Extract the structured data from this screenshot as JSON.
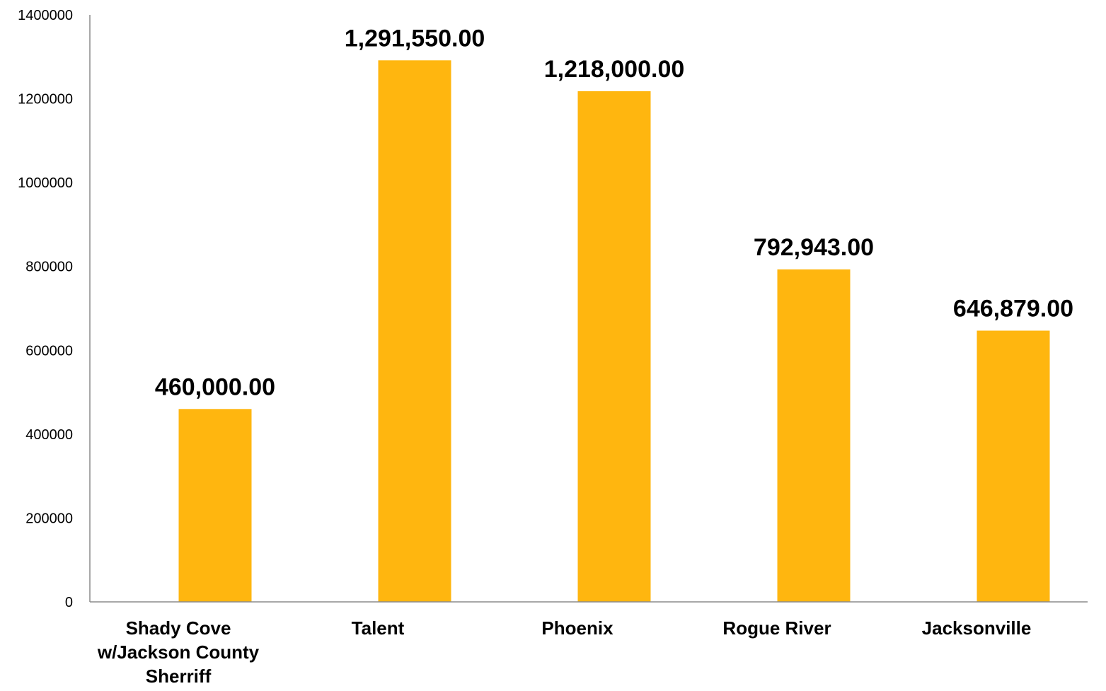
{
  "chart_data": {
    "type": "bar",
    "categories": [
      [
        "Shady Cove",
        "w/Jackson County",
        "Sherriff"
      ],
      [
        "Talent"
      ],
      [
        "Phoenix"
      ],
      [
        "Rogue River"
      ],
      [
        "Jacksonville"
      ]
    ],
    "values": [
      460000,
      1291550,
      1218000,
      792943,
      646879
    ],
    "data_labels": [
      "460,000.00",
      "1,291,550.00",
      "1,218,000.00",
      "792,943.00",
      "646,879.00"
    ],
    "y_ticks": [
      0,
      200000,
      400000,
      600000,
      800000,
      1000000,
      1200000,
      1400000
    ],
    "ylim": [
      0,
      1400000
    ],
    "grid": false,
    "legend": "none",
    "bar_color": "#FFB60F",
    "axis_color": "#8C8C8C"
  }
}
